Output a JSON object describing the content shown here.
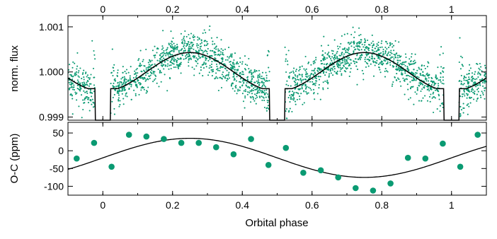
{
  "colors": {
    "data": "#0a9a72",
    "model": "#000000",
    "axes": "#000000",
    "background": "#ffffff"
  },
  "chart_data": [
    {
      "type": "scatter",
      "panel": "top",
      "ylabel": "norm. flux",
      "xlabel": "",
      "xlim": [
        -0.1,
        1.1
      ],
      "ylim": [
        0.99893,
        1.00125
      ],
      "top_ticks": [
        0,
        0.2,
        0.4,
        0.6,
        0.8,
        1
      ],
      "top_tick_labels": [
        "0",
        "0.2",
        "0.4",
        "0.6",
        "0.8",
        "1"
      ],
      "yticks": [
        0.999,
        1.0,
        1.001
      ],
      "ytick_labels": [
        "0.999",
        "1.000",
        "1.001"
      ],
      "grid": false,
      "model": {
        "description": "phase curve: baseline 1.0 with 0.00043 amplitude peaking at phases 0.25 and 0.75, flat at ~0.99963 near conjunctions, transits/eclipses at phases 0, 0.5 and 1",
        "baseline": 1.0,
        "amplitude": 0.00043,
        "flat_level": 0.99963,
        "dip_phases": [
          0,
          0.5,
          1
        ],
        "dip_half_width": 0.022,
        "dip_depth": 0.9985
      },
      "scatter": {
        "description": "densely sampled photometric points (green) scattered ~0.0003 around the model",
        "scatter_sigma": 0.00028
      }
    },
    {
      "type": "scatter",
      "panel": "bottom",
      "ylabel": "O-C (ppm)",
      "xlabel": "Orbital phase",
      "xlim": [
        -0.1,
        1.1
      ],
      "ylim": [
        -125,
        80
      ],
      "xticks": [
        0,
        0.2,
        0.4,
        0.6,
        0.8,
        1
      ],
      "xtick_labels": [
        "0",
        "0.2",
        "0.4",
        "0.6",
        "0.8",
        "1"
      ],
      "yticks": [
        50,
        0,
        -50,
        -100
      ],
      "ytick_labels": [
        "50",
        "0",
        "-50",
        "-100"
      ],
      "grid": false,
      "points": {
        "x": [
          -0.075,
          -0.025,
          0.025,
          0.075,
          0.125,
          0.175,
          0.225,
          0.275,
          0.325,
          0.375,
          0.425,
          0.475,
          0.525,
          0.575,
          0.625,
          0.675,
          0.725,
          0.775,
          0.825,
          0.875,
          0.925,
          0.975,
          1.025,
          1.075
        ],
        "y": [
          -22,
          22,
          -45,
          45,
          40,
          33,
          22,
          22,
          10,
          -10,
          33,
          -40,
          8,
          -62,
          -55,
          -75,
          -105,
          -112,
          -92,
          -20,
          -22,
          20,
          -45,
          45
        ]
      },
      "model": {
        "description": "sinusoid y = -20 + 55*sin(2*pi*x); max ~35 at phase 0.25, min ~-75 at phase 0.75",
        "offset": -20,
        "amplitude": 55
      }
    }
  ]
}
